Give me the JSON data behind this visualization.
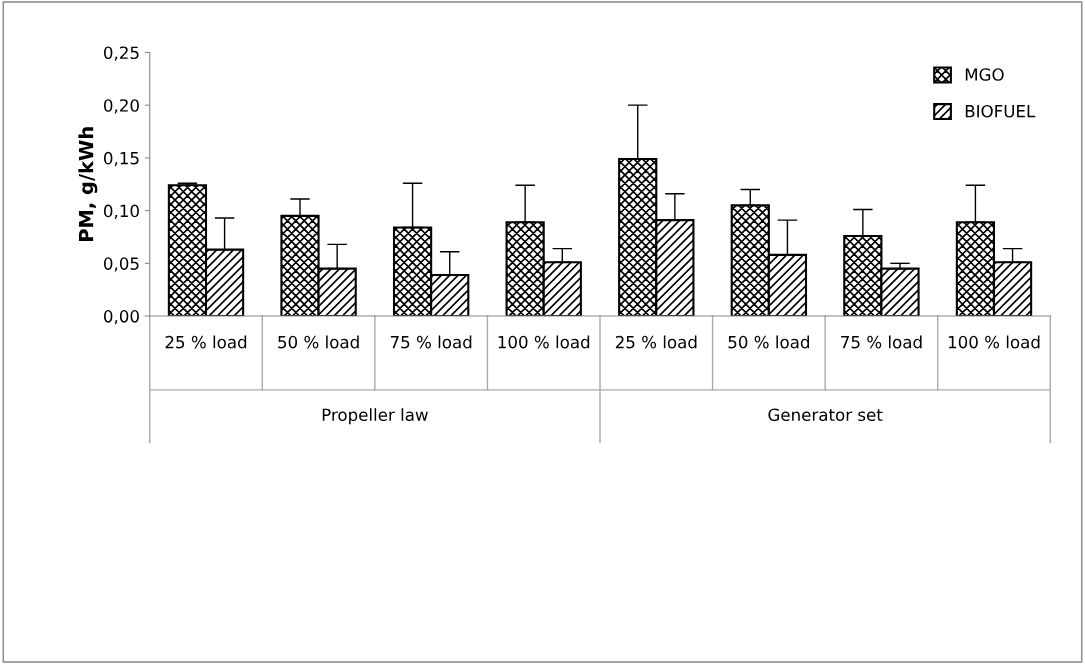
{
  "chart_data": {
    "type": "bar",
    "ylabel": "PM, g/kWh",
    "categories": [
      "25 % load",
      "50 % load",
      "75 % load",
      "100 % load",
      "25 % load",
      "50 % load",
      "75 % load",
      "100 % load"
    ],
    "annotations": [
      "Propeller law",
      "Generator set"
    ],
    "series": [
      {
        "name": "MGO",
        "color": "#000000",
        "values": [
          0.124,
          0.095,
          0.084,
          0.089,
          0.149,
          0.105,
          0.076,
          0.089
        ],
        "errors": [
          0.002,
          0.016,
          0.042,
          0.035,
          0.051,
          0.015,
          0.025,
          0.035
        ]
      },
      {
        "name": "BIOFUEL",
        "color": "#000000",
        "values": [
          0.063,
          0.045,
          0.039,
          0.051,
          0.091,
          0.058,
          0.045,
          0.051
        ],
        "errors": [
          0.03,
          0.023,
          0.022,
          0.013,
          0.025,
          0.033,
          0.005,
          0.013
        ]
      }
    ],
    "ylim": [
      0,
      0.25
    ],
    "yticks": [
      {
        "value": 0,
        "label": "0,00"
      },
      {
        "value": 0.05,
        "label": "0,05"
      },
      {
        "value": 0.1,
        "label": "0,10"
      },
      {
        "value": 0.15,
        "label": "0,15"
      },
      {
        "value": 0.2,
        "label": "0,20"
      },
      {
        "value": 0.25,
        "label": "0,25"
      }
    ],
    "grid": false,
    "legend": "top right"
  }
}
